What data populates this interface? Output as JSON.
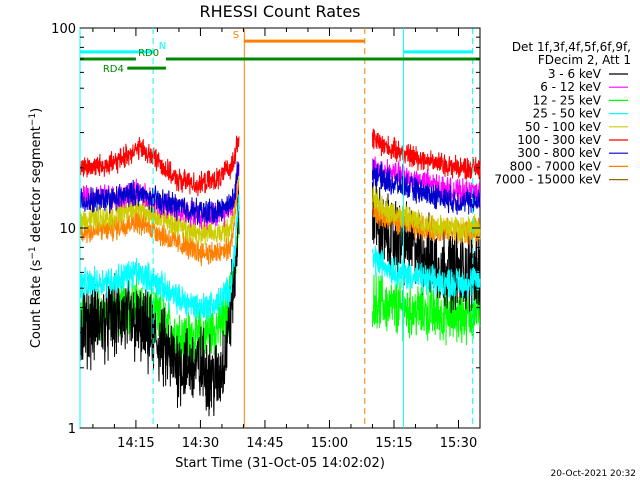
{
  "chart_data": {
    "type": "line",
    "title": "RHESSI Count Rates",
    "xlabel": "Start Time (31-Oct-05 14:02:02)",
    "ylabel": "Count Rate (s⁻¹ detector segment⁻¹)",
    "ylabel_main": "Count Rate (s",
    "ylabel_mid": " detector segment",
    "ylabel_end": ")",
    "yscale": "log",
    "ylim": [
      1,
      100
    ],
    "xlim_minutes": [
      0,
      93
    ],
    "x_tick_labels": [
      "14:15",
      "14:30",
      "14:45",
      "15:00",
      "15:15",
      "15:30"
    ],
    "x_tick_minutes": [
      13,
      28,
      43,
      58,
      73,
      88
    ],
    "y_tick_labels": [
      "1",
      "10",
      "100"
    ],
    "y_tick_values": [
      1,
      10,
      100
    ],
    "legend": {
      "placement": "right",
      "header": [
        "Det 1f,3f,4f,5f,6f,9f,",
        "FDecim 2, Att 1"
      ]
    },
    "timestamp": "20-Oct-2021 20:32",
    "series": [
      {
        "name": "3 - 6 keV",
        "color": "#000000",
        "pre": [
          [
            0,
            3.2
          ],
          [
            10,
            3.6
          ],
          [
            18,
            2.7
          ],
          [
            22,
            2.1
          ],
          [
            29,
            2.0
          ],
          [
            32,
            1.7
          ],
          [
            34,
            2.5
          ],
          [
            36,
            6.0
          ],
          [
            37,
            13
          ]
        ],
        "post": [
          [
            68,
            13
          ],
          [
            70,
            9.5
          ],
          [
            78,
            8.0
          ],
          [
            84,
            6.5
          ],
          [
            90,
            6.0
          ],
          [
            93,
            6.5
          ]
        ],
        "noise": 0.16
      },
      {
        "name": "6 - 12 keV",
        "color": "#ff00ff",
        "pre": [
          [
            0,
            14
          ],
          [
            10,
            14.5
          ],
          [
            14,
            15
          ],
          [
            16,
            13.8
          ],
          [
            20,
            12.8
          ],
          [
            26,
            11.8
          ],
          [
            30,
            11.5
          ],
          [
            34,
            12
          ],
          [
            36,
            14
          ],
          [
            37,
            21
          ]
        ],
        "post": [
          [
            68,
            20
          ],
          [
            72,
            19
          ],
          [
            80,
            17
          ],
          [
            88,
            15
          ],
          [
            93,
            15
          ]
        ],
        "noise": 0.05
      },
      {
        "name": "12 - 25 keV",
        "color": "#00ff00",
        "pre": [
          [
            0,
            3.5
          ],
          [
            8,
            3.8
          ],
          [
            12,
            4.2
          ],
          [
            16,
            3.8
          ],
          [
            22,
            3.0
          ],
          [
            26,
            2.8
          ],
          [
            30,
            3.0
          ],
          [
            34,
            3.5
          ],
          [
            36,
            6
          ],
          [
            37,
            12
          ]
        ],
        "post": [
          [
            68,
            4.5
          ],
          [
            72,
            4.0
          ],
          [
            80,
            3.8
          ],
          [
            88,
            3.6
          ],
          [
            93,
            3.8
          ]
        ],
        "noise": 0.11
      },
      {
        "name": "25 - 50 keV",
        "color": "#00ffff",
        "pre": [
          [
            0,
            5.2
          ],
          [
            8,
            5.5
          ],
          [
            13,
            6.0
          ],
          [
            17,
            5.5
          ],
          [
            22,
            4.5
          ],
          [
            28,
            4.0
          ],
          [
            32,
            4.2
          ],
          [
            35,
            5
          ],
          [
            36,
            8
          ],
          [
            37,
            14
          ]
        ],
        "post": [
          [
            68,
            7
          ],
          [
            74,
            6.0
          ],
          [
            82,
            5.4
          ],
          [
            90,
            5.3
          ],
          [
            93,
            5.5
          ]
        ],
        "noise": 0.06
      },
      {
        "name": "50 - 100 keV",
        "color": "#cccc00",
        "pre": [
          [
            0,
            11
          ],
          [
            8,
            11.5
          ],
          [
            13,
            12.8
          ],
          [
            16,
            12
          ],
          [
            22,
            10.5
          ],
          [
            28,
            9.5
          ],
          [
            32,
            9.2
          ],
          [
            35,
            10
          ],
          [
            36,
            13
          ],
          [
            37,
            19
          ]
        ],
        "post": [
          [
            68,
            14
          ],
          [
            72,
            12
          ],
          [
            80,
            10.5
          ],
          [
            88,
            10
          ],
          [
            93,
            10
          ]
        ],
        "noise": 0.05
      },
      {
        "name": "100 - 300 keV",
        "color": "#ff0000",
        "pre": [
          [
            0,
            20
          ],
          [
            8,
            21
          ],
          [
            12,
            24
          ],
          [
            14,
            25
          ],
          [
            18,
            22
          ],
          [
            22,
            17.5
          ],
          [
            28,
            16.5
          ],
          [
            32,
            17.5
          ],
          [
            35,
            20
          ],
          [
            37,
            28
          ]
        ],
        "post": [
          [
            68,
            28
          ],
          [
            72,
            25
          ],
          [
            80,
            22
          ],
          [
            88,
            20
          ],
          [
            93,
            20
          ]
        ],
        "noise": 0.045
      },
      {
        "name": "300 - 800 keV",
        "color": "#0000cc",
        "pre": [
          [
            0,
            13.5
          ],
          [
            8,
            14
          ],
          [
            13,
            15
          ],
          [
            16,
            14.2
          ],
          [
            22,
            13
          ],
          [
            28,
            12
          ],
          [
            32,
            12.2
          ],
          [
            35,
            13
          ],
          [
            36,
            15
          ],
          [
            37,
            22
          ]
        ],
        "post": [
          [
            68,
            19
          ],
          [
            72,
            17
          ],
          [
            80,
            15
          ],
          [
            88,
            13.5
          ],
          [
            93,
            13.5
          ]
        ],
        "noise": 0.05
      },
      {
        "name": "800 - 7000 keV",
        "color": "#ff7f00",
        "pre": [
          [
            0,
            9.5
          ],
          [
            8,
            10
          ],
          [
            13,
            11
          ],
          [
            16,
            10.2
          ],
          [
            22,
            8.5
          ],
          [
            28,
            7.6
          ],
          [
            32,
            7.4
          ],
          [
            35,
            8
          ],
          [
            36,
            11
          ],
          [
            37,
            18
          ]
        ],
        "post": [
          [
            68,
            12
          ],
          [
            72,
            11
          ],
          [
            80,
            10
          ],
          [
            88,
            9.5
          ],
          [
            93,
            9.5
          ]
        ],
        "noise": 0.05
      },
      {
        "name": "7000 - 15000 keV",
        "color": "#8b7000",
        "pre": [],
        "post": [],
        "noise": 0
      }
    ],
    "annotations": {
      "vlines": [
        {
          "minute": 0,
          "color": "#00ffff",
          "dashed": false
        },
        {
          "minute": 17,
          "color": "#00ffff",
          "dashed": true
        },
        {
          "minute": 38.2,
          "color": "#ff7f00",
          "dashed": false
        },
        {
          "minute": 66.2,
          "color": "#ff7f00",
          "dashed": true
        },
        {
          "minute": 75.2,
          "color": "#00ffff",
          "dashed": false
        },
        {
          "minute": 91.3,
          "color": "#00ffff",
          "dashed": true
        }
      ],
      "bars": [
        {
          "label": "N",
          "color": "#00ffff",
          "y_value": 76,
          "segments": [
            [
              0,
              17
            ],
            [
              75.2,
              91.3
            ]
          ],
          "label_minute": 18.3,
          "label_side": "right"
        },
        {
          "label": "S",
          "color": "#ff7f00",
          "y_value": 86,
          "segments": [
            [
              38.2,
              66.2
            ]
          ],
          "label_minute": 37,
          "label_side": "left"
        },
        {
          "label": "RD0",
          "color": "#008800",
          "y_value": 70,
          "segments": [
            [
              20,
              93
            ]
          ],
          "label_minute": 13.5,
          "label_side": "right"
        },
        {
          "label": "RD4",
          "color": "#008800",
          "y_value": 63,
          "segments": [
            [
              11,
              20
            ]
          ],
          "label_minute": 10.2,
          "label_side": "left"
        }
      ],
      "rd0_short_segment": [
        [
          0,
          13
        ]
      ]
    }
  }
}
